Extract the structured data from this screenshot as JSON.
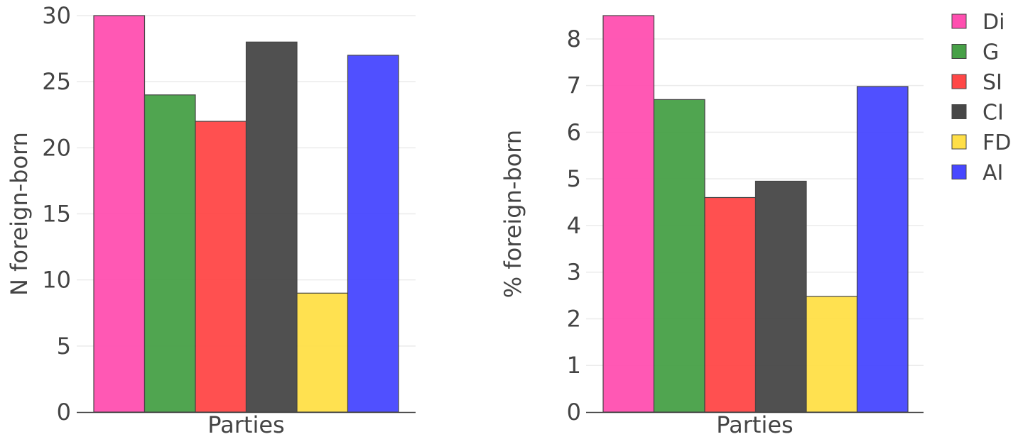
{
  "chart_data": [
    {
      "type": "bar",
      "xlabel": "Parties",
      "ylabel": "N foreign-born",
      "ylim": [
        0,
        30
      ],
      "yticks": [
        0,
        5,
        10,
        15,
        20,
        25,
        30
      ],
      "grid": true,
      "series": [
        {
          "name": "Di",
          "color": "#ff4fb0",
          "value": 30
        },
        {
          "name": "G",
          "color": "#47a047",
          "value": 24
        },
        {
          "name": "SI",
          "color": "#ff4747",
          "value": 22
        },
        {
          "name": "CI",
          "color": "#474747",
          "value": 28
        },
        {
          "name": "FD",
          "color": "#ffdf47",
          "value": 9
        },
        {
          "name": "AI",
          "color": "#4747ff",
          "value": 27
        }
      ]
    },
    {
      "type": "bar",
      "xlabel": "Parties",
      "ylabel": "% foreign-born",
      "ylim": [
        0,
        8.5
      ],
      "yticks": [
        0,
        1,
        2,
        3,
        4,
        5,
        6,
        7,
        8
      ],
      "grid": true,
      "series": [
        {
          "name": "Di",
          "color": "#ff4fb0",
          "value": 8.5
        },
        {
          "name": "G",
          "color": "#47a047",
          "value": 6.7
        },
        {
          "name": "SI",
          "color": "#ff4747",
          "value": 4.6
        },
        {
          "name": "CI",
          "color": "#474747",
          "value": 4.95
        },
        {
          "name": "FD",
          "color": "#ffdf47",
          "value": 2.48
        },
        {
          "name": "AI",
          "color": "#4747ff",
          "value": 6.98
        }
      ]
    }
  ],
  "legend": {
    "placement": "right",
    "items": [
      {
        "label": "Di",
        "color": "#ff4fb0"
      },
      {
        "label": "G",
        "color": "#47a047"
      },
      {
        "label": "SI",
        "color": "#ff4747"
      },
      {
        "label": "CI",
        "color": "#474747"
      },
      {
        "label": "FD",
        "color": "#ffdf47"
      },
      {
        "label": "AI",
        "color": "#4747ff"
      }
    ]
  }
}
